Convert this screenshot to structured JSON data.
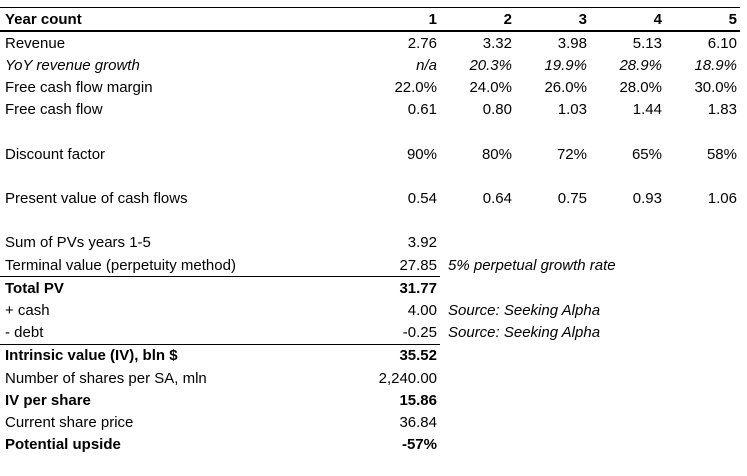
{
  "page": {
    "background_color": "#ffffff",
    "text_color": "#000000"
  },
  "table": {
    "header": {
      "label": "Year count",
      "years": [
        "1",
        "2",
        "3",
        "4",
        "5"
      ]
    },
    "rows": {
      "revenue": {
        "label": "Revenue",
        "values": [
          "2.76",
          "3.32",
          "3.98",
          "5.13",
          "6.10"
        ]
      },
      "yoy_growth": {
        "label": "YoY revenue growth",
        "values": [
          "n/a",
          "20.3%",
          "19.9%",
          "28.9%",
          "18.9%"
        ]
      },
      "fcf_margin": {
        "label": "Free cash flow margin",
        "values": [
          "22.0%",
          "24.0%",
          "26.0%",
          "28.0%",
          "30.0%"
        ]
      },
      "fcf": {
        "label": "Free cash flow",
        "values": [
          "0.61",
          "0.80",
          "1.03",
          "1.44",
          "1.83"
        ]
      },
      "discount_factor": {
        "label": "Discount factor",
        "values": [
          "90%",
          "80%",
          "72%",
          "65%",
          "58%"
        ]
      },
      "pv_cash_flows": {
        "label": "Present value of cash flows",
        "values": [
          "0.54",
          "0.64",
          "0.75",
          "0.93",
          "1.06"
        ]
      },
      "sum_pvs": {
        "label": "Sum of PVs years 1-5",
        "value": "3.92"
      },
      "terminal_value": {
        "label": "Terminal value (perpetuity method)",
        "value": "27.85",
        "note": "5% perpetual growth rate"
      },
      "total_pv": {
        "label": "Total PV",
        "value": "31.77"
      },
      "cash": {
        "label": "+ cash",
        "value": "4.00",
        "note": "Source: Seeking Alpha"
      },
      "debt": {
        "label": "- debt",
        "value": "-0.25",
        "note": "Source: Seeking Alpha"
      },
      "intrinsic_value": {
        "label": "Intrinsic value (IV), bln $",
        "value": "35.52"
      },
      "shares": {
        "label": "Number of shares per SA, mln",
        "value": "2,240.00"
      },
      "iv_per_share": {
        "label": "IV per share",
        "value": "15.86"
      },
      "current_price": {
        "label": "Current share price",
        "value": "36.84"
      },
      "upside": {
        "label": "Potential upside",
        "value": "-57%"
      }
    }
  }
}
